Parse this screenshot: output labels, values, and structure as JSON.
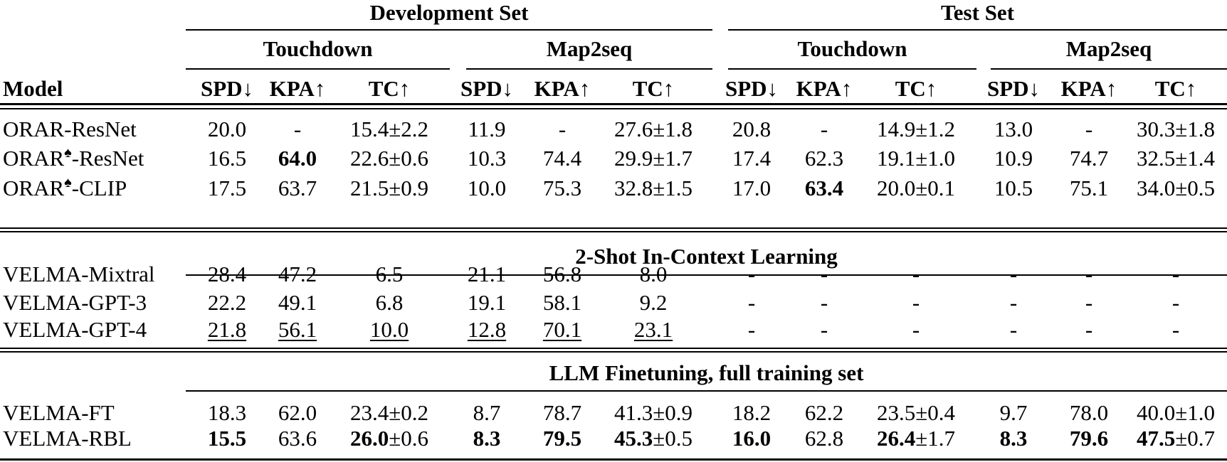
{
  "header": {
    "model": "Model",
    "groups": [
      {
        "label": "Development Set",
        "subs": [
          "Touchdown",
          "Map2seq"
        ]
      },
      {
        "label": "Test Set",
        "subs": [
          "Touchdown",
          "Map2seq"
        ]
      }
    ],
    "metrics": [
      "SPD↓",
      "KPA↑",
      "TC↑"
    ]
  },
  "sections": [
    {
      "title": null,
      "rows": [
        {
          "model": "ORAR",
          "sup": "",
          "suffix": "-ResNet",
          "cells": [
            {
              "t": "20.0"
            },
            {
              "t": "-"
            },
            {
              "t": "15.4±2.2"
            },
            {
              "t": "11.9"
            },
            {
              "t": "-"
            },
            {
              "t": "27.6±1.8"
            },
            {
              "t": "20.8"
            },
            {
              "t": "-"
            },
            {
              "t": "14.9±1.2"
            },
            {
              "t": "13.0"
            },
            {
              "t": "-"
            },
            {
              "t": "30.3±1.8"
            }
          ]
        },
        {
          "model": "ORAR",
          "sup": "♠",
          "suffix": "-ResNet",
          "cells": [
            {
              "t": "16.5"
            },
            {
              "b": "64.0"
            },
            {
              "t": "22.6±0.6"
            },
            {
              "t": "10.3"
            },
            {
              "t": "74.4"
            },
            {
              "t": "29.9±1.7"
            },
            {
              "t": "17.4"
            },
            {
              "t": "62.3"
            },
            {
              "t": "19.1±1.0"
            },
            {
              "t": "10.9"
            },
            {
              "t": "74.7"
            },
            {
              "t": "32.5±1.4"
            }
          ]
        },
        {
          "model": "ORAR",
          "sup": "♠",
          "suffix": "-CLIP",
          "cells": [
            {
              "t": "17.5"
            },
            {
              "t": "63.7"
            },
            {
              "t": "21.5±0.9"
            },
            {
              "t": "10.0"
            },
            {
              "t": "75.3"
            },
            {
              "t": "32.8±1.5"
            },
            {
              "t": "17.0"
            },
            {
              "b": "63.4"
            },
            {
              "t": "20.0±0.1"
            },
            {
              "t": "10.5"
            },
            {
              "t": "75.1"
            },
            {
              "t": "34.0±0.5"
            }
          ]
        }
      ]
    },
    {
      "title": "2-Shot In-Context Learning",
      "rows": [
        {
          "model": "VELMA-Mixtral",
          "sup": "",
          "suffix": "",
          "cells": [
            {
              "t": "28.4"
            },
            {
              "t": "47.2"
            },
            {
              "t": "6.5"
            },
            {
              "t": "21.1"
            },
            {
              "t": "56.8"
            },
            {
              "t": "8.0"
            },
            {
              "t": "-"
            },
            {
              "t": "-"
            },
            {
              "t": "-"
            },
            {
              "t": "-"
            },
            {
              "t": "-"
            },
            {
              "t": "-"
            }
          ]
        },
        {
          "model": "VELMA-GPT-3",
          "sup": "",
          "suffix": "",
          "cells": [
            {
              "t": "22.2"
            },
            {
              "t": "49.1"
            },
            {
              "t": "6.8"
            },
            {
              "t": "19.1"
            },
            {
              "t": "58.1"
            },
            {
              "t": "9.2"
            },
            {
              "t": "-"
            },
            {
              "t": "-"
            },
            {
              "t": "-"
            },
            {
              "t": "-"
            },
            {
              "t": "-"
            },
            {
              "t": "-"
            }
          ]
        },
        {
          "model": "VELMA-GPT-4",
          "sup": "",
          "suffix": "",
          "cells": [
            {
              "t": "21.8",
              "u": true
            },
            {
              "t": "56.1",
              "u": true
            },
            {
              "t": "10.0",
              "u": true
            },
            {
              "t": "12.8",
              "u": true
            },
            {
              "t": "70.1",
              "u": true
            },
            {
              "t": "23.1",
              "u": true
            },
            {
              "t": "-"
            },
            {
              "t": "-"
            },
            {
              "t": "-"
            },
            {
              "t": "-"
            },
            {
              "t": "-"
            },
            {
              "t": "-"
            }
          ]
        }
      ]
    },
    {
      "title": "LLM Finetuning, full training set",
      "rows": [
        {
          "model": "VELMA-FT",
          "sup": "",
          "suffix": "",
          "cells": [
            {
              "t": "18.3"
            },
            {
              "t": "62.0"
            },
            {
              "t": "23.4±0.2"
            },
            {
              "t": "8.7"
            },
            {
              "t": "78.7"
            },
            {
              "t": "41.3±0.9"
            },
            {
              "t": "18.2"
            },
            {
              "t": "62.2"
            },
            {
              "t": "23.5±0.4"
            },
            {
              "t": "9.7"
            },
            {
              "t": "78.0"
            },
            {
              "t": "40.0±1.0"
            }
          ]
        },
        {
          "model": "VELMA-RBL",
          "sup": "",
          "suffix": "",
          "cells": [
            {
              "b": "15.5"
            },
            {
              "t": "63.6"
            },
            {
              "b": "26.0",
              "t": "±0.6"
            },
            {
              "b": "8.3"
            },
            {
              "b": "79.5"
            },
            {
              "b": "45.3",
              "t": "±0.5"
            },
            {
              "b": "16.0"
            },
            {
              "t": "62.8"
            },
            {
              "b": "26.4",
              "t": "±1.7"
            },
            {
              "b": "8.3"
            },
            {
              "b": "79.6"
            },
            {
              "b": "47.5",
              "t": "±0.7"
            }
          ]
        }
      ]
    }
  ]
}
